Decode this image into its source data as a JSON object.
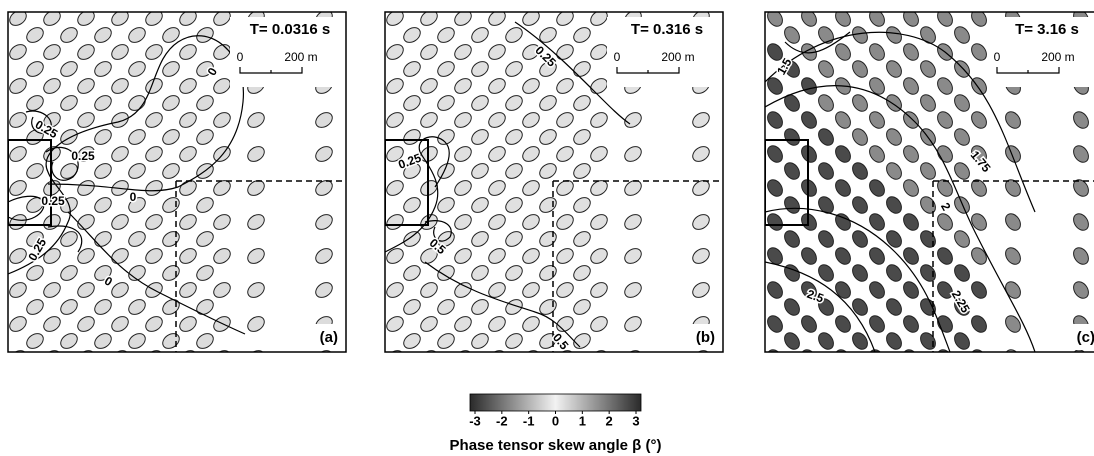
{
  "panels": [
    {
      "title": "T= 0.0316 s",
      "label": "(a)",
      "scale_labels": [
        "0",
        "200 m"
      ],
      "ellipse_colors": [
        "#dcdcdc",
        "#dcdcdc"
      ],
      "contour_labels": [
        "0",
        "0.25",
        "0.25",
        "0.25",
        "0",
        "0.25",
        "0"
      ]
    },
    {
      "title": "T= 0.316 s",
      "label": "(b)",
      "scale_labels": [
        "0",
        "200 m"
      ],
      "ellipse_colors": [
        "#e0e0e0",
        "#e0e0e0"
      ],
      "contour_labels": [
        "0.25",
        "0.25",
        "0.5",
        "0.5"
      ]
    },
    {
      "title": "T= 3.16 s",
      "label": "(c)",
      "scale_labels": [
        "0",
        "200 m"
      ],
      "ellipse_colors": [
        "#8a8a8a",
        "#4a4a4a"
      ],
      "contour_labels": [
        "1.5",
        "1.75",
        "2",
        "2.5",
        "2.25"
      ]
    }
  ],
  "colorbar": {
    "ticks": [
      -3,
      -2,
      -1,
      0,
      1,
      2,
      3
    ],
    "lim": [
      -3,
      3
    ],
    "label": "Phase tensor skew angle β (°)"
  }
}
